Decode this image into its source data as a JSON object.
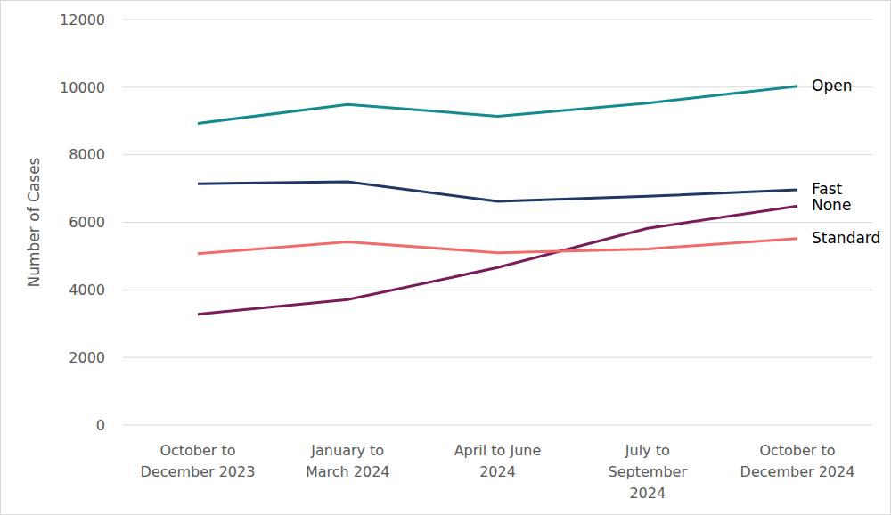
{
  "chart_data": {
    "type": "line",
    "y_label": "Number of Cases",
    "categories": [
      "October to December 2023",
      "January to March 2024",
      "April to June 2024",
      "July to September 2024",
      "October to December 2024"
    ],
    "series": [
      {
        "name": "Open",
        "color": "#138a8f",
        "values": [
          8930,
          9490,
          9140,
          9530,
          10030
        ]
      },
      {
        "name": "Fast",
        "color": "#203864",
        "values": [
          7140,
          7200,
          6620,
          6770,
          6960
        ]
      },
      {
        "name": "None",
        "color": "#7b1c5a",
        "values": [
          3280,
          3710,
          4660,
          5820,
          6480
        ]
      },
      {
        "name": "Standard",
        "color": "#f26b6b",
        "values": [
          5070,
          5420,
          5100,
          5210,
          5520
        ]
      }
    ],
    "ylim": [
      0,
      12000
    ],
    "yticks": [
      0,
      2000,
      4000,
      6000,
      8000,
      10000,
      12000
    ],
    "grid": true
  }
}
